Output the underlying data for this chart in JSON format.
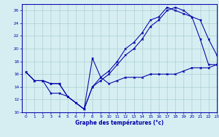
{
  "xlabel": "Graphe des températures (°c)",
  "bg_color": "#d6eef2",
  "grid_color": "#aacccc",
  "line_color": "#0000aa",
  "xlim": [
    -0.5,
    23
  ],
  "ylim": [
    10,
    27
  ],
  "yticks": [
    10,
    12,
    14,
    16,
    18,
    20,
    22,
    24,
    26
  ],
  "xticks": [
    0,
    1,
    2,
    3,
    4,
    5,
    6,
    7,
    8,
    9,
    10,
    11,
    12,
    13,
    14,
    15,
    16,
    17,
    18,
    19,
    20,
    21,
    22,
    23
  ],
  "line1_x": [
    0,
    1,
    2,
    3,
    4,
    5,
    6,
    7,
    8,
    9,
    10,
    11,
    12,
    13,
    14,
    15,
    16,
    17,
    18,
    19,
    20,
    21,
    22,
    23
  ],
  "line1_y": [
    16.3,
    15.0,
    15.0,
    14.5,
    14.5,
    12.5,
    11.5,
    10.5,
    14.0,
    15.0,
    16.0,
    17.5,
    19.0,
    20.0,
    21.5,
    23.5,
    24.5,
    26.0,
    26.5,
    26.0,
    25.0,
    24.5,
    21.5,
    19.0
  ],
  "line2_x": [
    0,
    1,
    2,
    3,
    4,
    5,
    6,
    7,
    8,
    9,
    10,
    11,
    12,
    13,
    14,
    15,
    16,
    17,
    18,
    19,
    20,
    21,
    22,
    23
  ],
  "line2_y": [
    16.3,
    15.0,
    15.0,
    14.5,
    14.5,
    12.5,
    11.5,
    10.5,
    14.0,
    15.5,
    16.5,
    18.0,
    20.0,
    21.0,
    22.5,
    24.5,
    25.0,
    26.5,
    26.0,
    25.5,
    25.0,
    21.5,
    17.5,
    17.5
  ],
  "line3_x": [
    0,
    1,
    2,
    3,
    4,
    5,
    6,
    7,
    8,
    9,
    10,
    11,
    12,
    13,
    14,
    15,
    16,
    17,
    18,
    19,
    20,
    21,
    22,
    23
  ],
  "line3_y": [
    16.3,
    15.0,
    15.0,
    13.0,
    13.0,
    12.5,
    11.5,
    10.5,
    18.5,
    15.5,
    14.5,
    15.0,
    15.5,
    15.5,
    15.5,
    16.0,
    16.0,
    16.0,
    16.0,
    16.5,
    17.0,
    17.0,
    17.0,
    17.5
  ]
}
